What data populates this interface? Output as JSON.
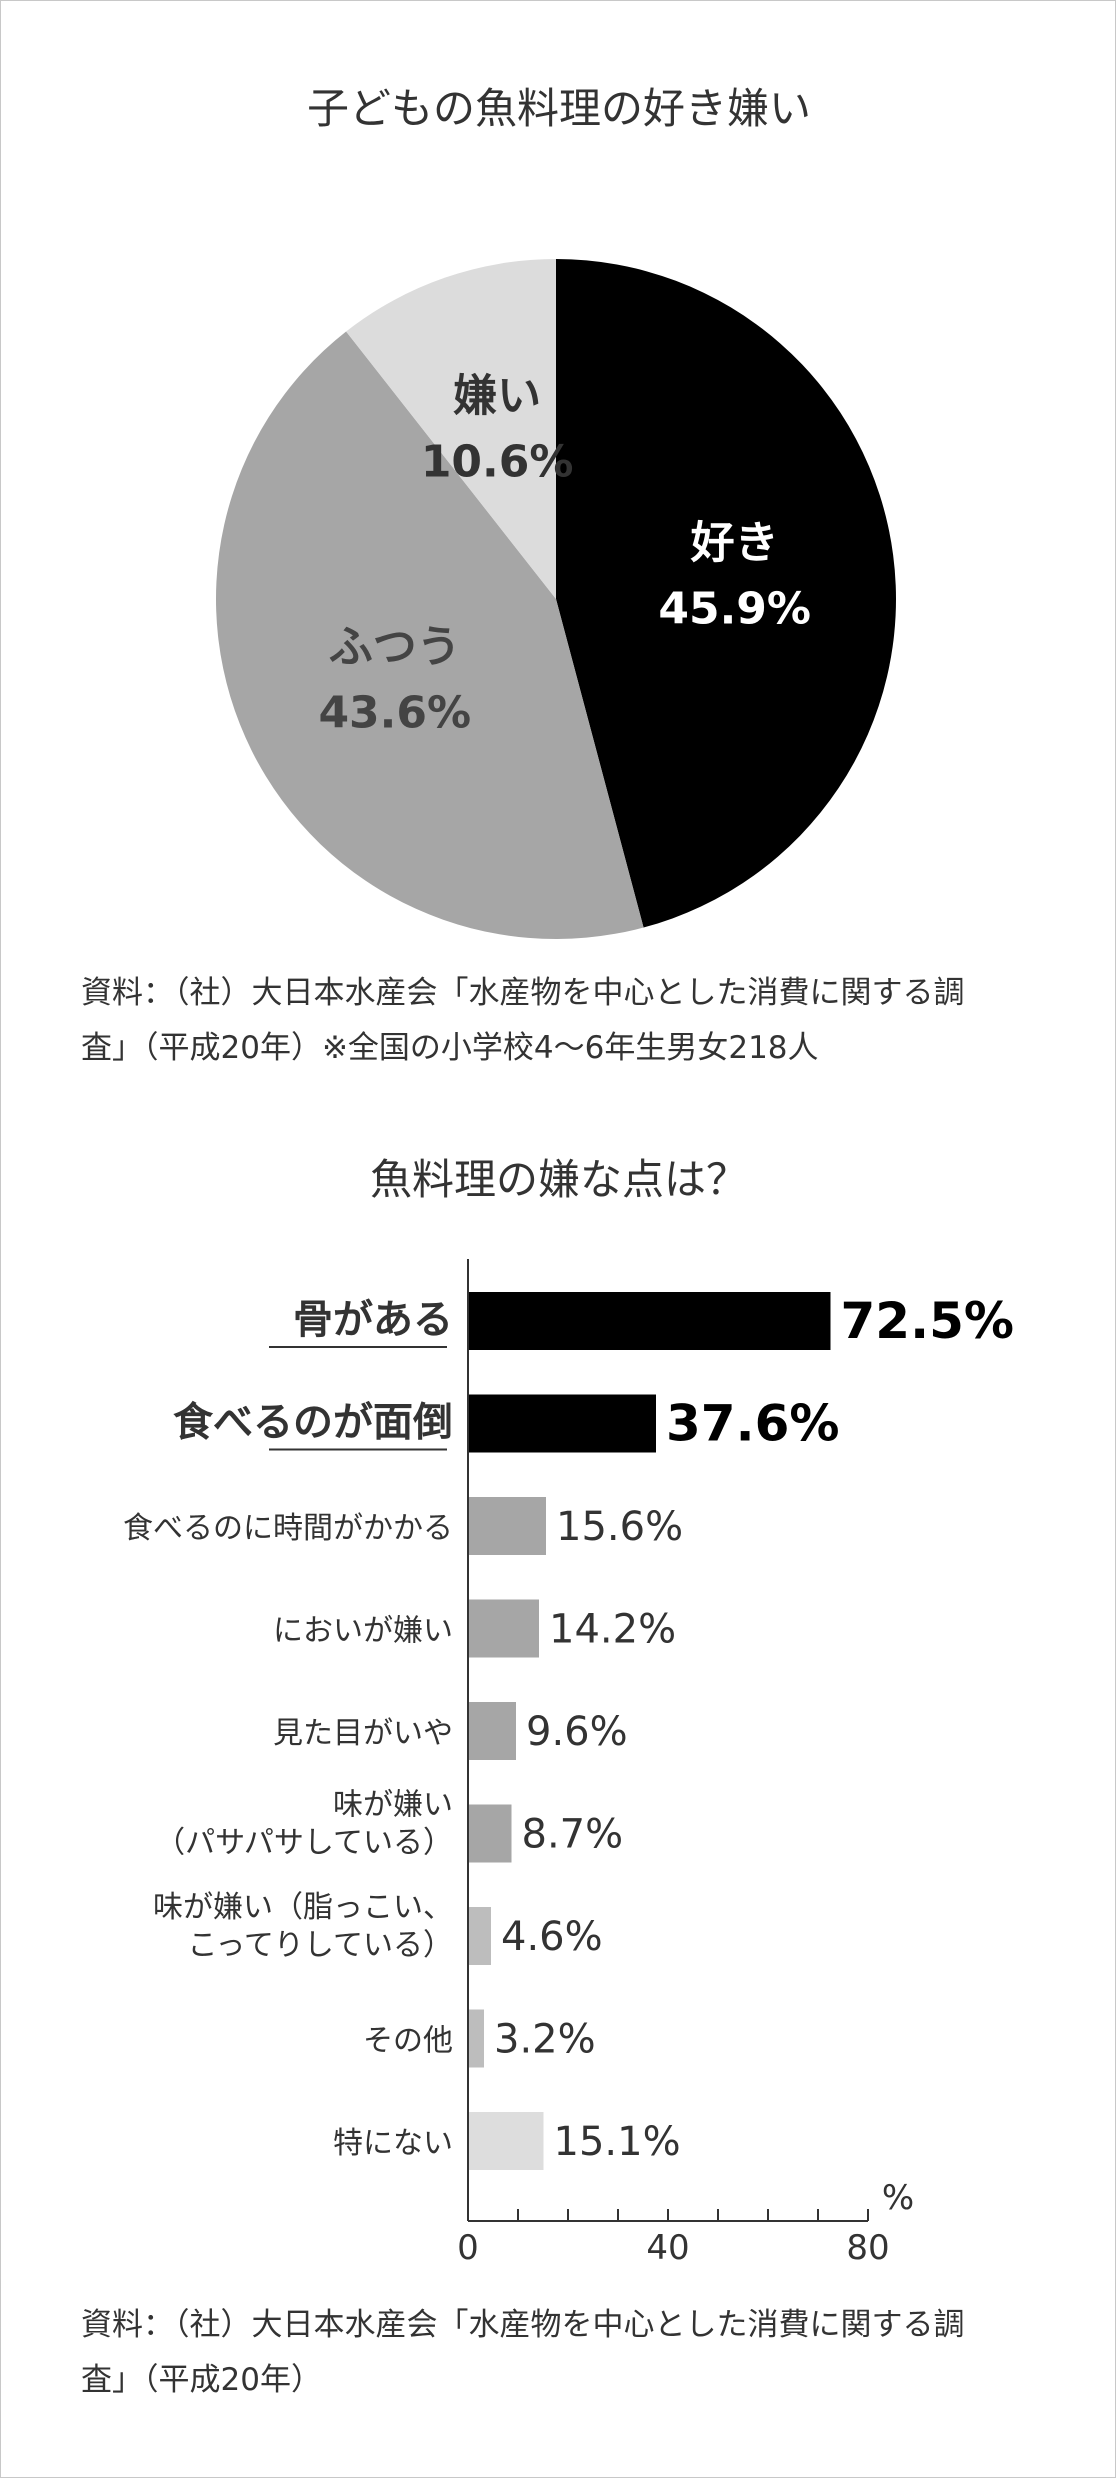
{
  "chart_data": [
    {
      "type": "pie",
      "title": "子どもの魚料理の好き嫌い",
      "slices": [
        {
          "label": "好き",
          "value": 45.9,
          "value_label": "45.9%",
          "color": "#000000",
          "text_color": "#ffffff"
        },
        {
          "label": "ふつう",
          "value": 43.6,
          "value_label": "43.6%",
          "color": "#a6a6a6",
          "text_color": "#444444"
        },
        {
          "label": "嫌い",
          "value": 10.6,
          "value_label": "10.6%",
          "color": "#dcdcdc",
          "text_color": "#333333"
        }
      ],
      "source_lines": [
        "資料：（社）大日本水産会「水産物を中心とした消費に関する調",
        "査」（平成20年）※全国の小学校4〜6年生男女218人"
      ]
    },
    {
      "type": "bar",
      "orientation": "horizontal",
      "title": "魚料理の嫌な点は？",
      "categories": [
        [
          "骨がある"
        ],
        [
          "食べるのが面倒"
        ],
        [
          "食べるのに時間がかかる"
        ],
        [
          "においが嫌い"
        ],
        [
          "見た目がいや"
        ],
        [
          "味が嫌い",
          "（パサパサしている）"
        ],
        [
          "味が嫌い（脂っこい、",
          "こってりしている）"
        ],
        [
          "その他"
        ],
        [
          "特にない"
        ]
      ],
      "values": [
        72.5,
        37.6,
        15.6,
        14.2,
        9.6,
        8.7,
        4.6,
        3.2,
        15.1
      ],
      "value_labels": [
        "72.5%",
        "37.6%",
        "15.6%",
        "14.2%",
        "9.6%",
        "8.7%",
        "4.6%",
        "3.2%",
        "15.1%"
      ],
      "bar_colors": [
        "#000000",
        "#000000",
        "#a6a6a6",
        "#a6a6a6",
        "#a6a6a6",
        "#a6a6a6",
        "#bdbdbd",
        "#bdbdbd",
        "#dddddd"
      ],
      "emphasized": [
        true,
        true,
        false,
        false,
        false,
        false,
        false,
        false,
        false
      ],
      "xlim": [
        0,
        80
      ],
      "x_tick_labels": [
        "0",
        "40",
        "80"
      ],
      "x_unit": "%",
      "source_lines": [
        "資料：（社）大日本水産会「水産物を中心とした消費に関する調",
        "査」（平成20年）"
      ]
    }
  ]
}
